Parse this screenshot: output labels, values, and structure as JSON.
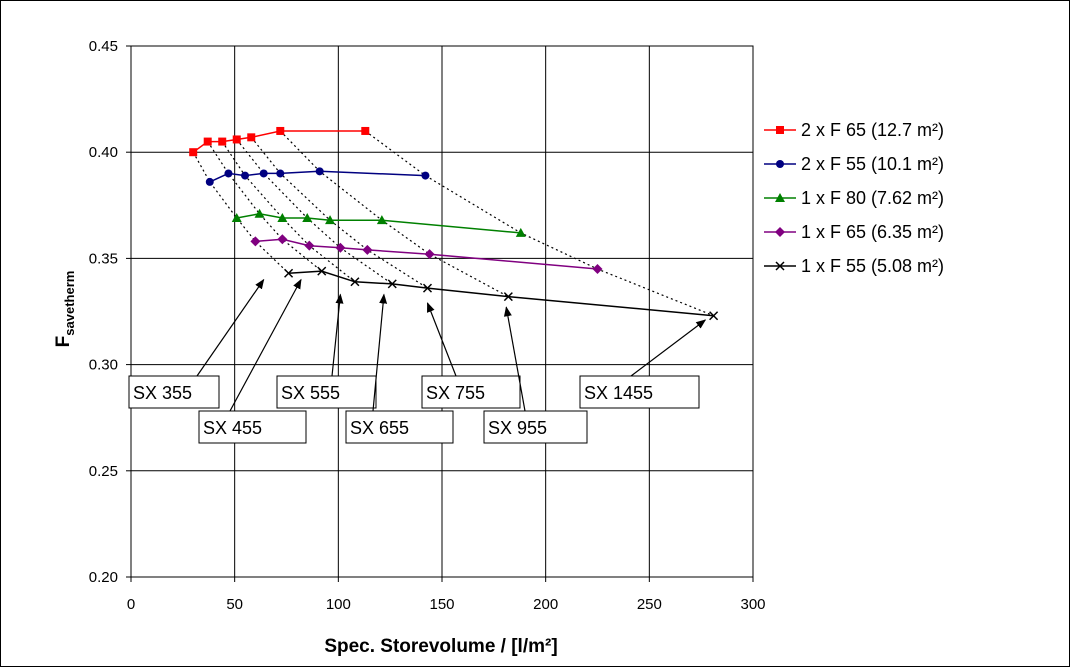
{
  "chart_data": {
    "type": "line",
    "title": "",
    "xlabel": "Spec. Storevolume / [l/m²]",
    "ylabel_main": "F",
    "ylabel_sub": "savetherm",
    "xlim": [
      0,
      300
    ],
    "ylim": [
      0.2,
      0.45
    ],
    "xticks": [
      "0",
      "50",
      "100",
      "150",
      "200",
      "250",
      "300"
    ],
    "yticks": [
      "0.20",
      "0.25",
      "0.30",
      "0.35",
      "0.40",
      "0.45"
    ],
    "grid": true,
    "legend_position": "right",
    "series": [
      {
        "name": "2 x F 65 (12.7 m²)",
        "color": "#ff0000",
        "marker": "square",
        "x": [
          30,
          37,
          44,
          51,
          58,
          72,
          113
        ],
        "y": [
          0.4,
          0.405,
          0.405,
          0.406,
          0.407,
          0.41,
          0.41
        ]
      },
      {
        "name": "2 x F 55 (10.1 m²)",
        "color": "#000080",
        "marker": "circle",
        "x": [
          38,
          47,
          55,
          64,
          72,
          91,
          142
        ],
        "y": [
          0.386,
          0.39,
          0.389,
          0.39,
          0.39,
          0.391,
          0.389
        ]
      },
      {
        "name": "1 x F 80 (7.62 m²)",
        "color": "#008000",
        "marker": "triangle",
        "x": [
          51,
          62,
          73,
          85,
          96,
          121,
          188
        ],
        "y": [
          0.369,
          0.371,
          0.369,
          0.369,
          0.368,
          0.368,
          0.362
        ]
      },
      {
        "name": "1 x F 65 (6.35 m²)",
        "color": "#800080",
        "marker": "diamond",
        "x": [
          60,
          73,
          86,
          101,
          114,
          144,
          225
        ],
        "y": [
          0.358,
          0.359,
          0.356,
          0.355,
          0.354,
          0.352,
          0.345
        ]
      },
      {
        "name": "1 x F 55 (5.08 m²)",
        "color": "#000000",
        "marker": "x",
        "x": [
          76,
          92,
          108,
          126,
          143,
          182,
          281
        ],
        "y": [
          0.343,
          0.344,
          0.339,
          0.338,
          0.336,
          0.332,
          0.323
        ]
      }
    ],
    "annotations": [
      {
        "label": "SX 355",
        "arrow_tip": [
          64,
          0.34
        ]
      },
      {
        "label": "SX 455",
        "arrow_tip": [
          82,
          0.34
        ]
      },
      {
        "label": "SX 555",
        "arrow_tip": [
          101,
          0.333
        ]
      },
      {
        "label": "SX 655",
        "arrow_tip": [
          122,
          0.333
        ]
      },
      {
        "label": "SX 755",
        "arrow_tip": [
          143,
          0.329
        ]
      },
      {
        "label": "SX 955",
        "arrow_tip": [
          181,
          0.327
        ]
      },
      {
        "label": "SX 1455",
        "arrow_tip": [
          277,
          0.321
        ]
      }
    ]
  }
}
